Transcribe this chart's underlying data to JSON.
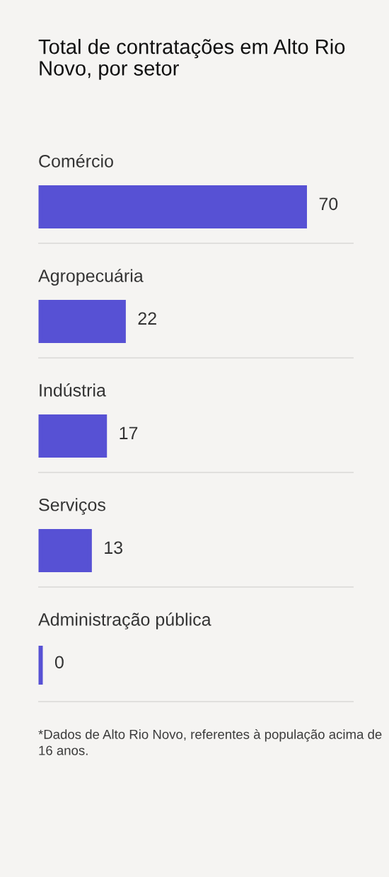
{
  "chart_data": {
    "type": "bar",
    "orientation": "horizontal",
    "title": "Total de contratações em Alto Rio Novo, por setor",
    "categories": [
      "Comércio",
      "Agropecuária",
      "Indústria",
      "Serviços",
      "Administração pública"
    ],
    "values": [
      70,
      22,
      17,
      13,
      0
    ],
    "color": "#5751d4",
    "data_labels": true,
    "grid": "y",
    "tick_labels": "y",
    "annotations": [
      "*Dados de Alto Rio Novo, referentes à população acima de 16 anos."
    ]
  }
}
